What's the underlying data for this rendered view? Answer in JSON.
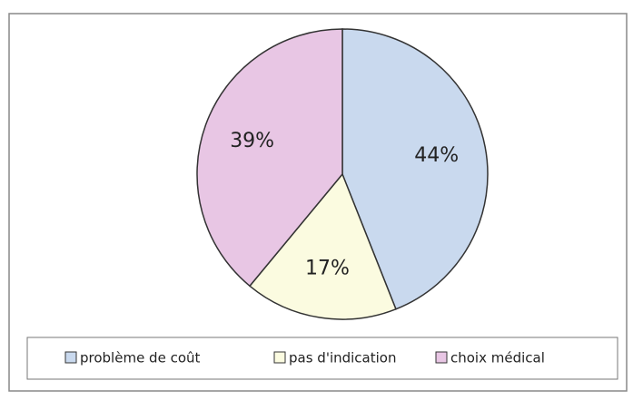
{
  "chart_data": {
    "type": "pie",
    "categories": [
      "problème de coût",
      "pas d'indication",
      "choix médical"
    ],
    "values": [
      44,
      17,
      39
    ],
    "value_labels": [
      "44%",
      "17%",
      "39%"
    ],
    "colors": [
      "#c9d9ee",
      "#fbfbe0",
      "#e8c6e4"
    ],
    "legend": "bottom"
  }
}
